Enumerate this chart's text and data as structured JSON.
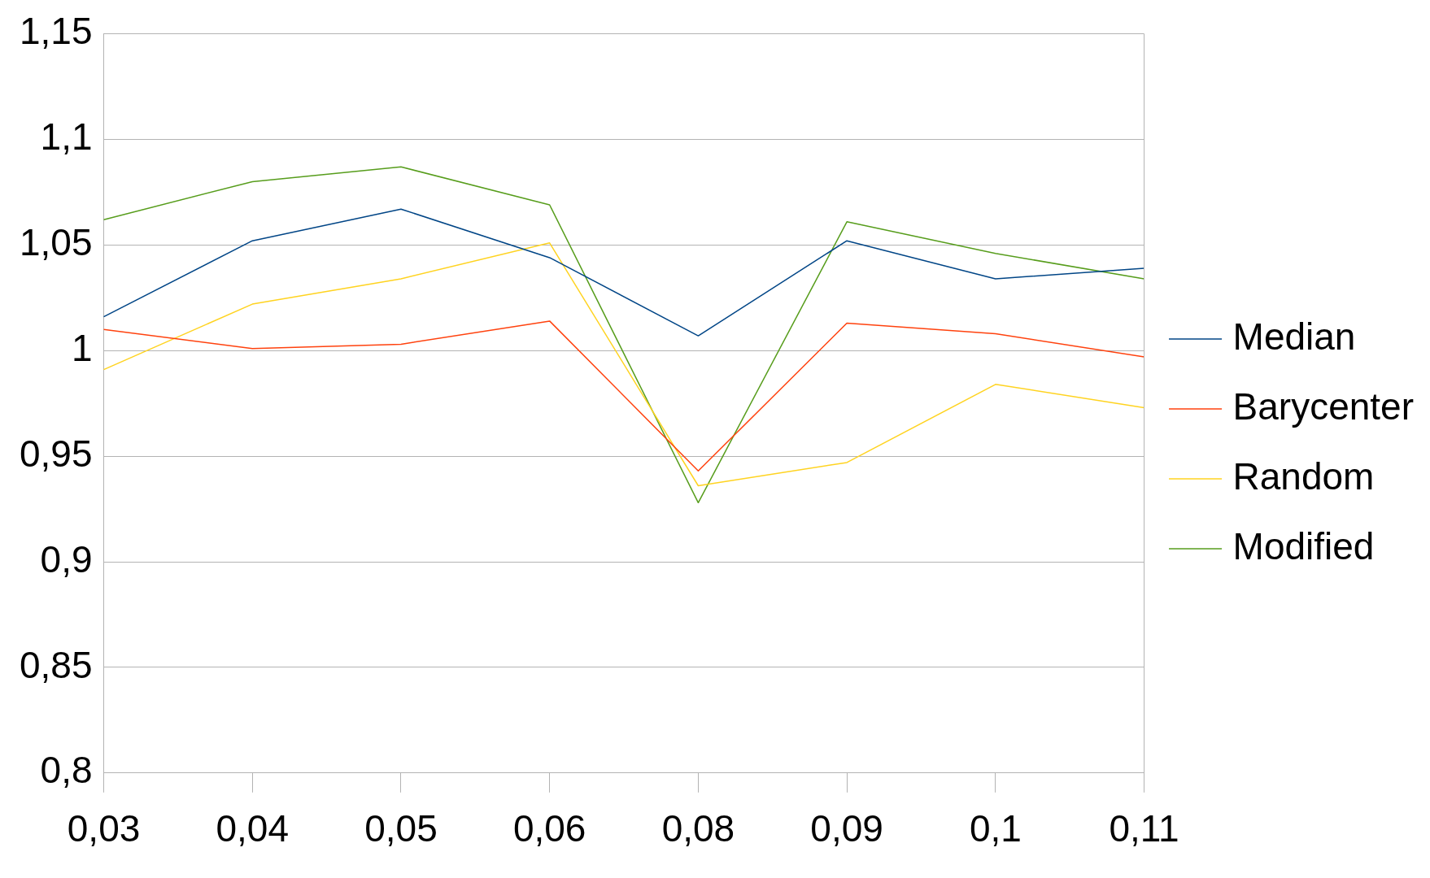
{
  "chart_data": {
    "type": "line",
    "categories": [
      "0,03",
      "0,04",
      "0,05",
      "0,06",
      "0,08",
      "0,09",
      "0,1",
      "0,11"
    ],
    "series": [
      {
        "name": "Median",
        "color": "#004586",
        "values": [
          1.016,
          1.052,
          1.067,
          1.044,
          1.007,
          1.052,
          1.034,
          1.039
        ]
      },
      {
        "name": "Barycenter",
        "color": "#ff420e",
        "values": [
          1.01,
          1.001,
          1.003,
          1.014,
          0.943,
          1.013,
          1.008,
          0.997
        ]
      },
      {
        "name": "Random",
        "color": "#ffd320",
        "values": [
          0.991,
          1.022,
          1.034,
          1.051,
          0.936,
          0.947,
          0.984,
          0.973
        ]
      },
      {
        "name": "Modified",
        "color": "#579d1c",
        "values": [
          1.062,
          1.08,
          1.087,
          1.069,
          0.928,
          1.061,
          1.046,
          1.034
        ]
      }
    ],
    "ylim": [
      0.8,
      1.15
    ],
    "yticks": [
      {
        "value": 0.8,
        "label": "0,8"
      },
      {
        "value": 0.85,
        "label": "0,85"
      },
      {
        "value": 0.9,
        "label": "0,9"
      },
      {
        "value": 0.95,
        "label": "0,95"
      },
      {
        "value": 1,
        "label": "1"
      },
      {
        "value": 1.05,
        "label": "1,05"
      },
      {
        "value": 1.1,
        "label": "1,1"
      },
      {
        "value": 1.15,
        "label": "1,15"
      }
    ],
    "grid": "y",
    "legend": "right",
    "marker": "none",
    "line_style": "solid"
  }
}
